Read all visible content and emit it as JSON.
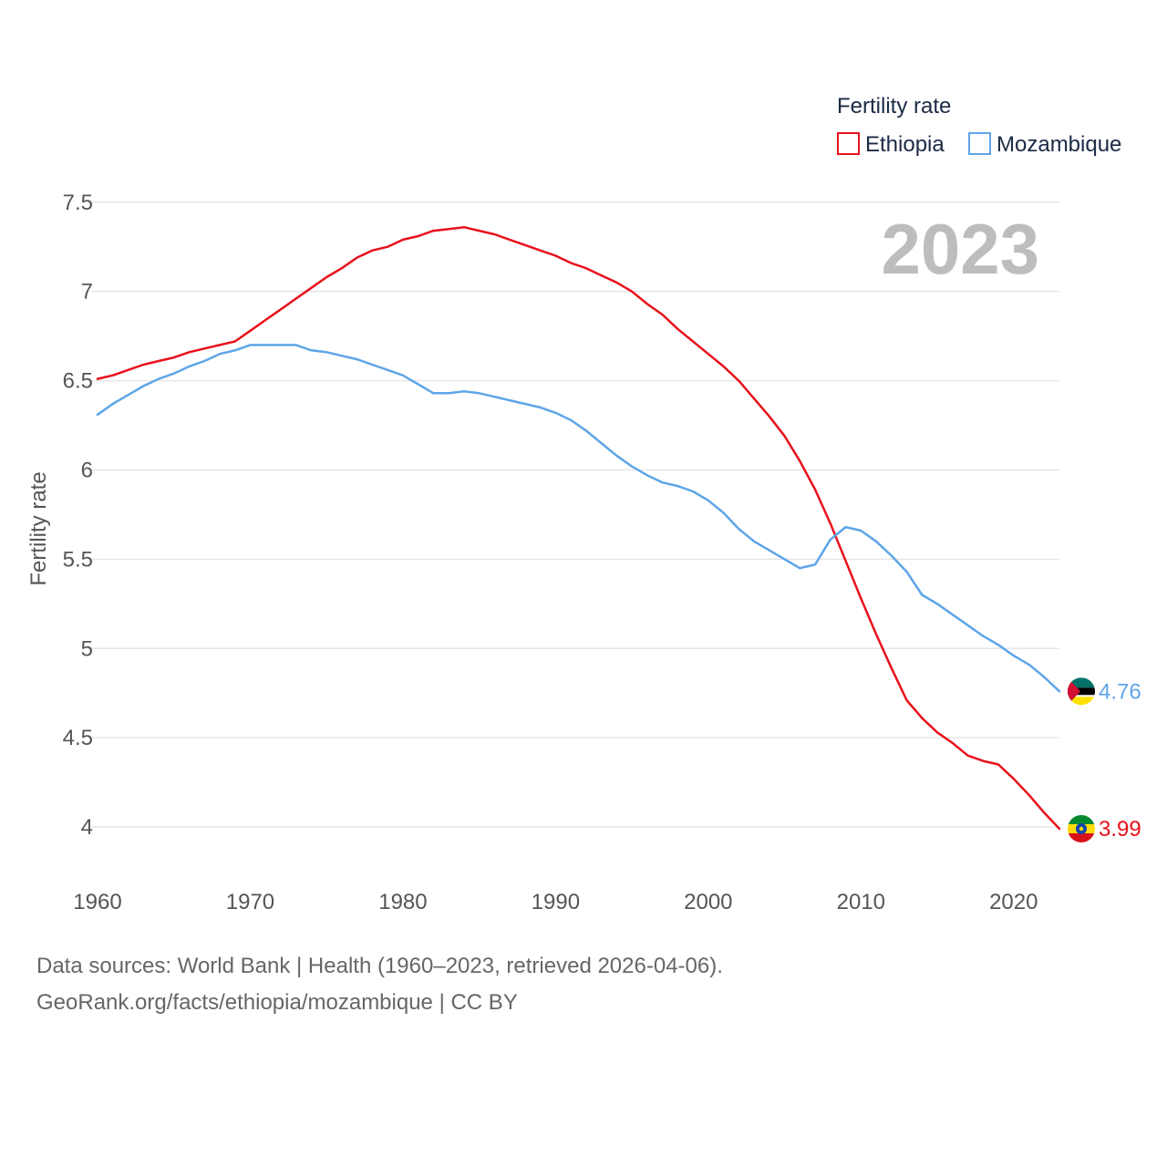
{
  "chart_data": {
    "type": "line",
    "legend_title": "Fertility rate",
    "ylabel": "Fertility rate",
    "xlabel": "",
    "year_label": "2023",
    "xlim": [
      1960,
      2023
    ],
    "ylim": [
      3.75,
      7.55
    ],
    "y_ticks": [
      {
        "value": 4,
        "label": "4"
      },
      {
        "value": 4.5,
        "label": "4.5"
      },
      {
        "value": 5,
        "label": "5"
      },
      {
        "value": 5.5,
        "label": "5.5"
      },
      {
        "value": 6,
        "label": "6"
      },
      {
        "value": 6.5,
        "label": "6.5"
      },
      {
        "value": 7,
        "label": "7"
      },
      {
        "value": 7.5,
        "label": "7.5"
      }
    ],
    "x_ticks": [
      {
        "value": 1960,
        "label": "1960"
      },
      {
        "value": 1970,
        "label": "1970"
      },
      {
        "value": 1980,
        "label": "1980"
      },
      {
        "value": 1990,
        "label": "1990"
      },
      {
        "value": 2000,
        "label": "2000"
      },
      {
        "value": 2010,
        "label": "2010"
      },
      {
        "value": 2020,
        "label": "2020"
      }
    ],
    "series": [
      {
        "name": "Ethiopia",
        "color": "#e8111b",
        "end_label": "3.99",
        "flag": "ethiopia-flag",
        "x": [
          1960,
          1961,
          1962,
          1963,
          1964,
          1965,
          1966,
          1967,
          1968,
          1969,
          1970,
          1971,
          1972,
          1973,
          1974,
          1975,
          1976,
          1977,
          1978,
          1979,
          1980,
          1981,
          1982,
          1983,
          1984,
          1985,
          1986,
          1987,
          1988,
          1989,
          1990,
          1991,
          1992,
          1993,
          1994,
          1995,
          1996,
          1997,
          1998,
          1999,
          2000,
          2001,
          2002,
          2003,
          2004,
          2005,
          2006,
          2007,
          2008,
          2009,
          2010,
          2011,
          2012,
          2013,
          2014,
          2015,
          2016,
          2017,
          2018,
          2019,
          2020,
          2021,
          2022,
          2023
        ],
        "values": [
          6.51,
          6.53,
          6.56,
          6.59,
          6.61,
          6.63,
          6.66,
          6.68,
          6.7,
          6.72,
          6.78,
          6.84,
          6.9,
          6.96,
          7.02,
          7.08,
          7.13,
          7.19,
          7.23,
          7.25,
          7.29,
          7.31,
          7.34,
          7.35,
          7.36,
          7.34,
          7.32,
          7.29,
          7.26,
          7.23,
          7.2,
          7.16,
          7.13,
          7.09,
          7.05,
          7.0,
          6.93,
          6.87,
          6.79,
          6.72,
          6.65,
          6.58,
          6.5,
          6.4,
          6.3,
          6.19,
          6.05,
          5.89,
          5.7,
          5.49,
          5.28,
          5.08,
          4.89,
          4.71,
          4.61,
          4.53,
          4.47,
          4.4,
          4.37,
          4.35,
          4.27,
          4.18,
          4.08,
          3.99
        ]
      },
      {
        "name": "Mozambique",
        "color": "#5ea5e8",
        "end_label": "4.76",
        "flag": "mozambique-flag",
        "x": [
          1960,
          1961,
          1962,
          1963,
          1964,
          1965,
          1966,
          1967,
          1968,
          1969,
          1970,
          1971,
          1972,
          1973,
          1974,
          1975,
          1976,
          1977,
          1978,
          1979,
          1980,
          1981,
          1982,
          1983,
          1984,
          1985,
          1986,
          1987,
          1988,
          1989,
          1990,
          1991,
          1992,
          1993,
          1994,
          1995,
          1996,
          1997,
          1998,
          1999,
          2000,
          2001,
          2002,
          2003,
          2004,
          2005,
          2006,
          2007,
          2008,
          2009,
          2010,
          2011,
          2012,
          2013,
          2014,
          2015,
          2016,
          2017,
          2018,
          2019,
          2020,
          2021,
          2022,
          2023
        ],
        "values": [
          6.31,
          6.37,
          6.42,
          6.47,
          6.51,
          6.54,
          6.58,
          6.61,
          6.65,
          6.67,
          6.7,
          6.7,
          6.7,
          6.7,
          6.67,
          6.66,
          6.64,
          6.62,
          6.59,
          6.56,
          6.53,
          6.48,
          6.43,
          6.43,
          6.44,
          6.43,
          6.41,
          6.39,
          6.37,
          6.35,
          6.32,
          6.28,
          6.22,
          6.15,
          6.08,
          6.02,
          5.97,
          5.93,
          5.91,
          5.88,
          5.83,
          5.76,
          5.67,
          5.6,
          5.55,
          5.5,
          5.45,
          5.47,
          5.61,
          5.68,
          5.66,
          5.6,
          5.52,
          5.43,
          5.3,
          5.25,
          5.19,
          5.13,
          5.07,
          5.02,
          4.96,
          4.91,
          4.84,
          4.76
        ]
      }
    ]
  },
  "footer": {
    "line1": "Data sources: World Bank | Health (1960–2023, retrieved 2026-04-06).",
    "line2": "GeoRank.org/facts/ethiopia/mozambique | CC BY"
  }
}
